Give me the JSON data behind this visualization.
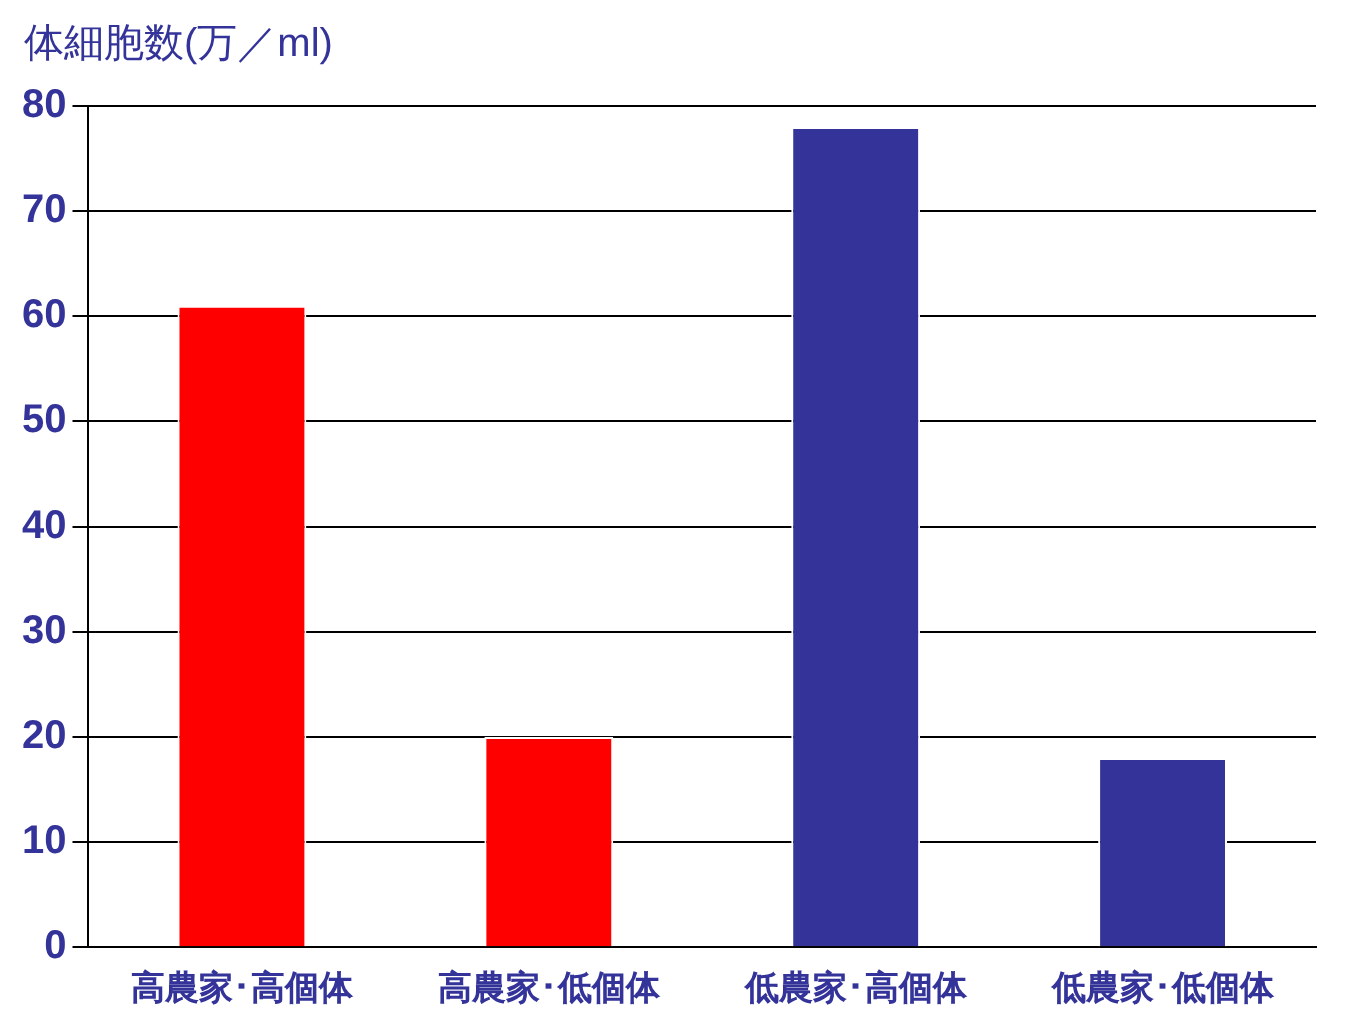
{
  "chart_data": {
    "type": "bar",
    "ylabel": "体細胞数(万／ml)",
    "categories": [
      "高農家･高個体",
      "高農家･低個体",
      "低農家･高個体",
      "低農家･低個体"
    ],
    "values": [
      61,
      20,
      78,
      18
    ],
    "colors": [
      "#ff0000",
      "#ff0000",
      "#333399",
      "#333399"
    ],
    "ylim": [
      0,
      80
    ],
    "yticks": [
      0,
      10,
      20,
      30,
      40,
      50,
      60,
      70,
      80
    ],
    "grid": "y",
    "legend": false
  }
}
